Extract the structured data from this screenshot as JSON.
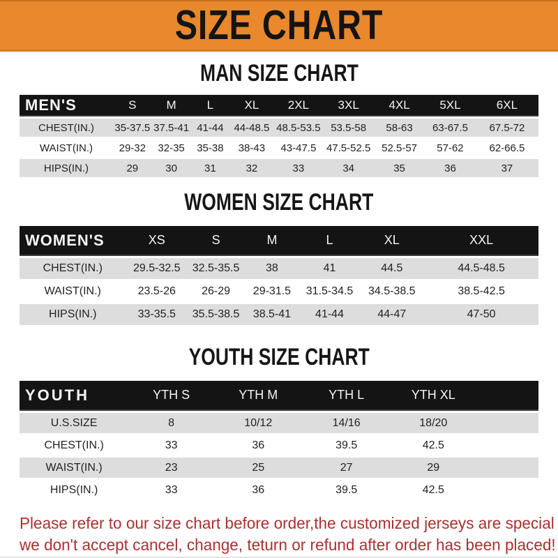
{
  "banner": {
    "title": "SIZE CHART"
  },
  "colors": {
    "banner_bg": "#e9882c",
    "band_bg": "#141414",
    "stripe_bg": "#dddddd",
    "footer_text": "#a93131"
  },
  "sections": [
    {
      "id": "men",
      "heading": "MAN SIZE CHART",
      "band_label": "MEN'S",
      "columns": [
        "S",
        "M",
        "L",
        "XL",
        "2XL",
        "3XL",
        "4XL",
        "5XL",
        "6XL"
      ],
      "rows": [
        {
          "label": "CHEST(IN.)",
          "values": [
            "35-37.5",
            "37.5-41",
            "41-44",
            "44-48.5",
            "48.5-53.5",
            "53.5-58",
            "58-63",
            "63-67.5",
            "67.5-72"
          ]
        },
        {
          "label": "WAIST(IN.)",
          "values": [
            "29-32",
            "32-35",
            "35-38",
            "38-43",
            "43-47.5",
            "47.5-52.5",
            "52.5-57",
            "57-62",
            "62-66.5"
          ]
        },
        {
          "label": "HIPS(IN.)",
          "values": [
            "29",
            "30",
            "31",
            "32",
            "33",
            "34",
            "35",
            "36",
            "37"
          ]
        }
      ]
    },
    {
      "id": "women",
      "heading": "WOMEN SIZE CHART",
      "band_label": "WOMEN'S",
      "columns": [
        "XS",
        "S",
        "M",
        "L",
        "XL",
        "XXL"
      ],
      "rows": [
        {
          "label": "CHEST(IN.)",
          "values": [
            "29.5-32.5",
            "32.5-35.5",
            "38",
            "41",
            "44.5",
            "44.5-48.5"
          ]
        },
        {
          "label": "WAIST(IN.)",
          "values": [
            "23.5-26",
            "26-29",
            "29-31.5",
            "31.5-34.5",
            "34.5-38.5",
            "38.5-42.5"
          ]
        },
        {
          "label": "HIPS(IN.)",
          "values": [
            "33-35.5",
            "35.5-38.5",
            "38.5-41",
            "41-44",
            "44-47",
            "47-50"
          ]
        }
      ]
    },
    {
      "id": "youth",
      "heading": "YOUTH SIZE CHART",
      "band_label": "YOUTH",
      "columns": [
        "YTH S",
        "YTH M",
        "YTH L",
        "YTH XL"
      ],
      "rows": [
        {
          "label": "U.S.SIZE",
          "values": [
            "8",
            "10/12",
            "14/16",
            "18/20"
          ]
        },
        {
          "label": "CHEST(IN.)",
          "values": [
            "33",
            "36",
            "39.5",
            "42.5"
          ]
        },
        {
          "label": "WAIST(IN.)",
          "values": [
            "23",
            "25",
            "27",
            "29"
          ]
        },
        {
          "label": "HIPS(IN.)",
          "values": [
            "33",
            "36",
            "39.5",
            "42.5"
          ]
        }
      ]
    }
  ],
  "footer": {
    "line1": "Please refer to our size chart before order,the customized jerseys are special products,",
    "line2": "we don't accept cancel, change, teturn or refund after order has been placed!"
  }
}
